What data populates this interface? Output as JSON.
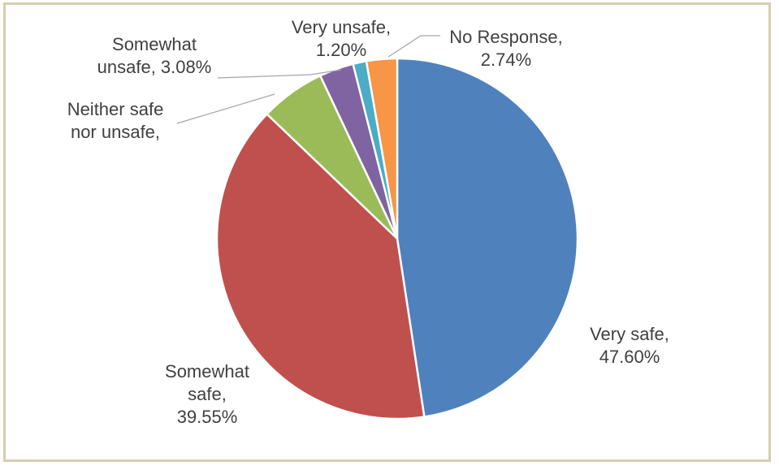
{
  "chart_data": {
    "type": "pie",
    "title": "",
    "slices": [
      {
        "category": "Very safe",
        "value": 47.6,
        "label_line1": "Very safe,",
        "label_line2": "47.60%",
        "color": "#4f81bd"
      },
      {
        "category": "Somewhat safe",
        "value": 39.55,
        "label_line1": "Somewhat",
        "label_line2": "safe,",
        "label_line3": "39.55%",
        "color": "#c0504d"
      },
      {
        "category": "Neither safe nor unsafe",
        "value": 5.83,
        "label_line1": "Neither safe",
        "label_line2": "nor unsafe,",
        "color": "#9bbb59"
      },
      {
        "category": "Somewhat unsafe",
        "value": 3.08,
        "label_line1": "Somewhat",
        "label_line2": "unsafe, 3.08%",
        "color": "#8064a2"
      },
      {
        "category": "Very unsafe",
        "value": 1.2,
        "label_line1": "Very unsafe,",
        "label_line2": "1.20%",
        "color": "#4bacc6"
      },
      {
        "category": "No Response",
        "value": 2.74,
        "label_line1": "No Response,",
        "label_line2": "2.74%",
        "color": "#f79646"
      }
    ],
    "legend": "none"
  }
}
